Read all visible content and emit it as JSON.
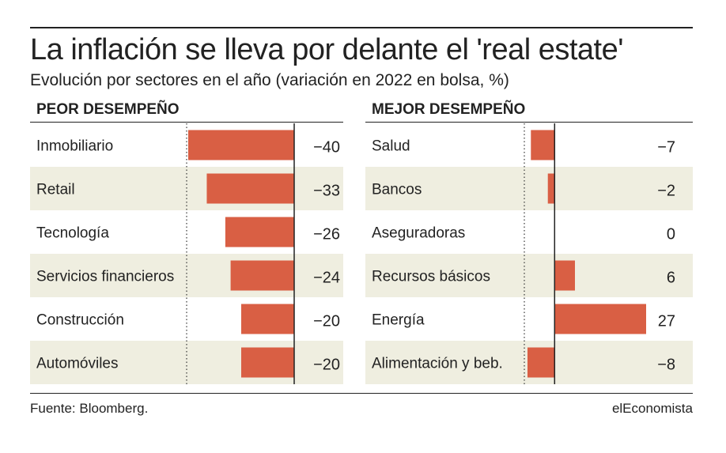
{
  "title": "La inflación se lleva por delante el 'real estate'",
  "subtitle": "Evolución por sectores en el año (variación en 2022 en bolsa, %)",
  "source": "Fuente: Bloomberg.",
  "brand": "elEconomista",
  "colors": {
    "bar": "#d95f44",
    "band": "#efeee0",
    "text": "#222222",
    "zero_line": "#222222"
  },
  "chart_data": [
    {
      "type": "bar",
      "title": "PEOR DESEMPEÑO",
      "orientation": "horizontal",
      "categories": [
        "Inmobiliario",
        "Retail",
        "Tecnología",
        "Servicios financieros",
        "Construcción",
        "Automóviles"
      ],
      "values": [
        -40,
        -33,
        -26,
        -24,
        -20,
        -20
      ],
      "value_labels": [
        "−40",
        "−33",
        "−26",
        "−24",
        "−20",
        "−20"
      ],
      "xlim": [
        -40,
        0
      ],
      "alternating_bands": true
    },
    {
      "type": "bar",
      "title": "MEJOR DESEMPEÑO",
      "orientation": "horizontal",
      "categories": [
        "Salud",
        "Bancos",
        "Aseguradoras",
        "Recursos básicos",
        "Energía",
        "Alimentación y beb."
      ],
      "values": [
        -7,
        -2,
        0,
        6,
        27,
        -8
      ],
      "value_labels": [
        "−7",
        "−2",
        "0",
        "6",
        "27",
        "−8"
      ],
      "xlim": [
        -8,
        27
      ],
      "alternating_bands": true
    }
  ]
}
